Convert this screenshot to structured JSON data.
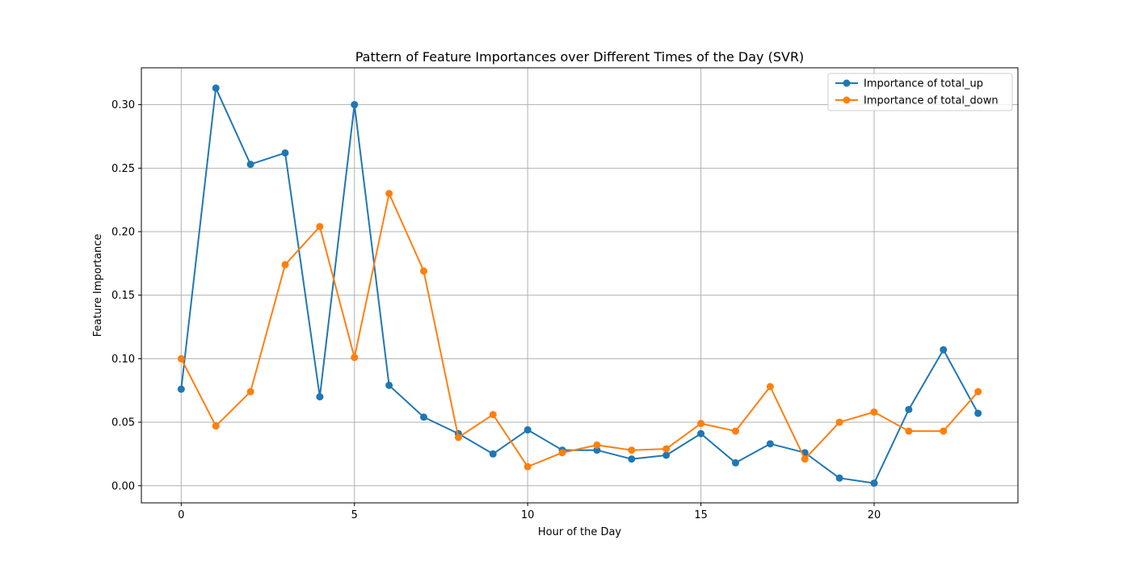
{
  "chart_data": {
    "type": "line",
    "title": "Pattern of Feature Importances over Different Times of the Day (SVR)",
    "xlabel": "Hour of the Day",
    "ylabel": "Feature Importance",
    "xlim": [
      -1.15,
      24.15
    ],
    "ylim": [
      -0.0135,
      0.329
    ],
    "xticks": [
      0,
      5,
      10,
      15,
      20
    ],
    "yticks": [
      0.0,
      0.05,
      0.1,
      0.15,
      0.2,
      0.25,
      0.3
    ],
    "ytick_labels": [
      "0.00",
      "0.05",
      "0.10",
      "0.15",
      "0.20",
      "0.25",
      "0.30"
    ],
    "grid": true,
    "legend_position": "top-right",
    "x": [
      0,
      1,
      2,
      3,
      4,
      5,
      6,
      7,
      8,
      9,
      10,
      11,
      12,
      13,
      14,
      15,
      16,
      17,
      18,
      19,
      20,
      21,
      22,
      23
    ],
    "series": [
      {
        "name": "Importance of total_up",
        "color": "#1f77b4",
        "values": [
          0.076,
          0.313,
          0.253,
          0.262,
          0.07,
          0.3,
          0.079,
          0.054,
          0.041,
          0.025,
          0.044,
          0.028,
          0.028,
          0.021,
          0.024,
          0.041,
          0.018,
          0.033,
          0.026,
          0.006,
          0.002,
          0.06,
          0.107,
          0.057
        ]
      },
      {
        "name": "Importance of total_down",
        "color": "#ff7f0e",
        "values": [
          0.1,
          0.047,
          0.074,
          0.174,
          0.204,
          0.101,
          0.23,
          0.169,
          0.038,
          0.056,
          0.015,
          0.026,
          0.032,
          0.028,
          0.029,
          0.049,
          0.043,
          0.078,
          0.021,
          0.05,
          0.058,
          0.043,
          0.043,
          0.074
        ]
      }
    ]
  }
}
